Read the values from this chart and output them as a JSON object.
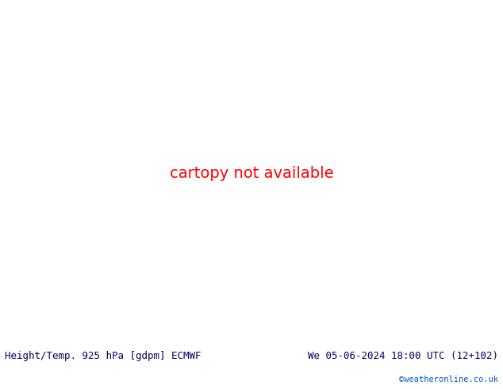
{
  "title_left": "Height/Temp. 925 hPa [gdpm] ECMWF",
  "title_right": "We 05-06-2024 18:00 UTC (12+102)",
  "copyright": "©weatheronline.co.uk",
  "bg_color": "#ffffff",
  "ocean_color": "#c8c8c8",
  "land_color": "#f0f0f0",
  "fig_width": 6.34,
  "fig_height": 4.9,
  "dpi": 100,
  "title_fontsize": 9,
  "title_color": "#000066",
  "copyright_color": "#0055cc"
}
